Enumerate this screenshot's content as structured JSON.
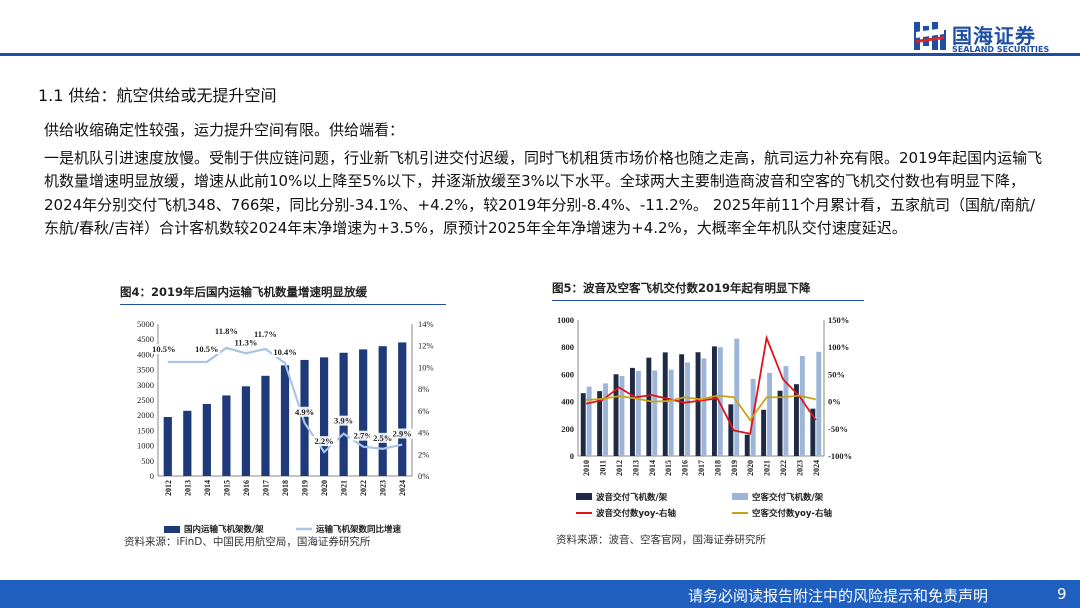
{
  "brand": {
    "name_cn": "国海证券",
    "name_en": "SEALAND SECURITIES",
    "primary_color": "#1f4fa3"
  },
  "section_title": "1.1 供给：航空供给或无提升空间",
  "paragraphs": {
    "lead": "供给收缩确定性较强，运力提升空间有限。供给端看：",
    "body": "一是机队引进速度放慢。受制于供应链问题，行业新飞机引进交付迟缓，同时飞机租赁市场价格也随之走高，航司运力补充有限。2019年起国内运输飞机数量增速明显放缓，增速从此前10%以上降至5%以下，并逐渐放缓至3%以下水平。全球两大主要制造商波音和空客的飞机交付数也有明显下降，2024年分别交付飞机348、766架，同比分别-34.1%、+4.2%，较2019年分别-8.4%、-11.2%。 2025年前11个月累计看，五家航司（国航/南航/东航/春秋/吉祥）合计客机数较2024年末净增速为+3.5%，原预计2025年全年净增速为+4.2%，大概率全年机队交付速度延迟。"
  },
  "chart_data": [
    {
      "type": "bar+line",
      "title": "图4：2019年后国内运输飞机数量增速明显放缓",
      "categories": [
        "2012",
        "2013",
        "2014",
        "2015",
        "2016",
        "2017",
        "2018",
        "2019",
        "2020",
        "2021",
        "2022",
        "2023",
        "2024"
      ],
      "series": [
        {
          "name": "国内运输飞机架数/架",
          "type": "bar",
          "axis": "left",
          "color": "#1f3a78",
          "values": [
            1940,
            2145,
            2370,
            2650,
            2950,
            3296,
            3639,
            3818,
            3903,
            4054,
            4165,
            4270,
            4394
          ]
        },
        {
          "name": "运输飞机架数同比增速",
          "type": "line",
          "axis": "right",
          "color": "#a9c4e4",
          "values": [
            10.5,
            null,
            10.5,
            11.8,
            11.3,
            11.7,
            10.4,
            4.9,
            2.2,
            3.9,
            2.7,
            2.5,
            2.9
          ]
        }
      ],
      "data_labels": [
        "10.5%",
        "10.5%",
        "11.8%",
        "11.3%",
        "11.7%",
        "10.4%",
        "4.9%",
        "2.2%",
        "3.9%",
        "2.7%",
        "2.5%",
        "2.9%"
      ],
      "ylim_left": [
        0,
        5000
      ],
      "yticks_left": [
        "0",
        "500",
        "1000",
        "1500",
        "2000",
        "2500",
        "3000",
        "3500",
        "4000",
        "4500",
        "5000"
      ],
      "ylim_right": [
        0,
        14
      ],
      "yticks_right": [
        "0%",
        "2%",
        "4%",
        "6%",
        "8%",
        "10%",
        "12%",
        "14%"
      ],
      "source": "资料来源：iFinD、中国民用航空局，国海证券研究所"
    },
    {
      "type": "bar+line",
      "title": "图5：波音及空客飞机交付数2019年起有明显下降",
      "categories": [
        "2010",
        "2011",
        "2012",
        "2013",
        "2014",
        "2015",
        "2016",
        "2017",
        "2018",
        "2019",
        "2020",
        "2021",
        "2022",
        "2023",
        "2024"
      ],
      "series": [
        {
          "name": "波音交付飞机数/架",
          "type": "bar",
          "axis": "left",
          "color": "#1f2a44",
          "values": [
            462,
            477,
            601,
            648,
            723,
            762,
            748,
            763,
            806,
            380,
            157,
            340,
            480,
            528,
            348
          ]
        },
        {
          "name": "空客交付飞机数/架",
          "type": "bar",
          "axis": "left",
          "color": "#9db5d8",
          "values": [
            510,
            534,
            588,
            626,
            629,
            635,
            688,
            718,
            800,
            863,
            566,
            611,
            661,
            735,
            766
          ]
        },
        {
          "name": "波音交付数yoy-右轴",
          "type": "line",
          "axis": "right",
          "color": "#e0141c",
          "values": [
            -4,
            3,
            26,
            8,
            12,
            5,
            -2,
            2,
            6,
            -53,
            -59,
            117,
            41,
            10,
            -34
          ]
        },
        {
          "name": "空客交付数yoy-右轴",
          "type": "line",
          "axis": "right",
          "color": "#c8a415",
          "values": [
            3,
            5,
            10,
            6,
            0,
            1,
            8,
            4,
            11,
            8,
            -34,
            8,
            8,
            11,
            4
          ]
        }
      ],
      "ylim_left": [
        0,
        1000
      ],
      "yticks_left": [
        "0",
        "200",
        "400",
        "600",
        "800",
        "1000"
      ],
      "ylim_right": [
        -100,
        150
      ],
      "yticks_right": [
        "-100%",
        "-50%",
        "0%",
        "50%",
        "100%",
        "150%"
      ],
      "source": "资料来源：波音、空客官网，国海证券研究所"
    }
  ],
  "footer": {
    "disclaimer": "请务必阅读报告附注中的风险提示和免责声明",
    "page_number": "9"
  }
}
